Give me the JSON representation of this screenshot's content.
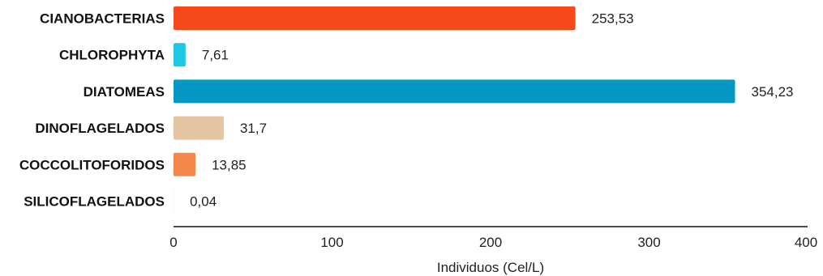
{
  "chart_data": {
    "type": "bar",
    "orientation": "horizontal",
    "title": "",
    "xlabel": "Individuos  (Cel/L)",
    "ylabel": "",
    "xlim": [
      0,
      400
    ],
    "x_ticks": [
      0,
      100,
      200,
      300,
      400
    ],
    "x_tick_labels": [
      "0",
      "100",
      "200",
      "300",
      "400"
    ],
    "grid": false,
    "legend": "none",
    "categories": [
      "CIANOBACTERIAS",
      "CHLOROPHYTA",
      "DIATOMEAS",
      "DINOFLAGELADOS",
      "COCCOLITOFORIDOS",
      "SILICOFLAGELADOS"
    ],
    "values": [
      253.53,
      7.61,
      354.23,
      31.7,
      13.85,
      0.04
    ],
    "value_labels": [
      "253,53",
      "7,61",
      "354,23",
      "31,7",
      "13,85",
      "0,04"
    ],
    "colors": [
      "#f64a1c",
      "#1ec7e3",
      "#0698c2",
      "#e5c5a1",
      "#f5874a",
      "#c9a986"
    ]
  }
}
